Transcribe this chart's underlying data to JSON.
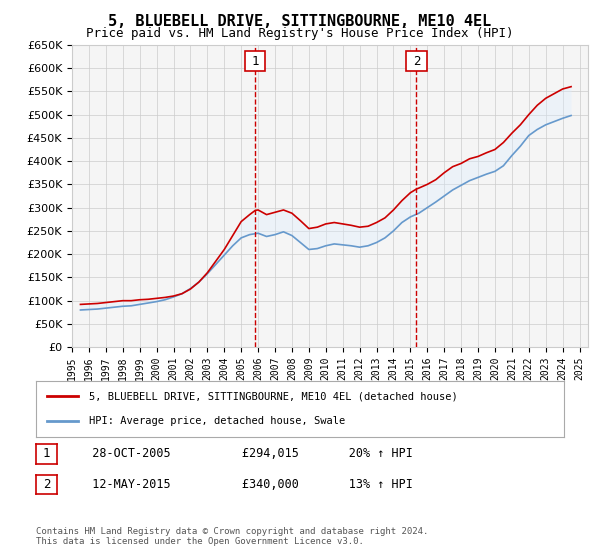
{
  "title": "5, BLUEBELL DRIVE, SITTINGBOURNE, ME10 4EL",
  "subtitle": "Price paid vs. HM Land Registry's House Price Index (HPI)",
  "ylabel_ticks": [
    "£0",
    "£50K",
    "£100K",
    "£150K",
    "£200K",
    "£250K",
    "£300K",
    "£350K",
    "£400K",
    "£450K",
    "£500K",
    "£550K",
    "£600K",
    "£650K"
  ],
  "ylim": [
    0,
    650000
  ],
  "ytick_values": [
    0,
    50000,
    100000,
    150000,
    200000,
    250000,
    300000,
    350000,
    400000,
    450000,
    500000,
    550000,
    600000,
    650000
  ],
  "red_line_color": "#cc0000",
  "blue_line_color": "#6699cc",
  "fill_color": "#ddeeff",
  "vline_color": "#cc0000",
  "vline_x1": 2005.83,
  "vline_x2": 2015.36,
  "marker1_label": "1",
  "marker2_label": "2",
  "transaction1": {
    "date": "28-OCT-2005",
    "price": 294015,
    "pct": "20%",
    "dir": "↑",
    "ref": "HPI"
  },
  "transaction2": {
    "date": "12-MAY-2015",
    "price": 340000,
    "pct": "13%",
    "dir": "↑",
    "ref": "HPI"
  },
  "legend_line1": "5, BLUEBELL DRIVE, SITTINGBOURNE, ME10 4EL (detached house)",
  "legend_line2": "HPI: Average price, detached house, Swale",
  "footnote": "Contains HM Land Registry data © Crown copyright and database right 2024.\nThis data is licensed under the Open Government Licence v3.0.",
  "background_color": "#ffffff",
  "plot_bg_color": "#f5f5f5",
  "red_data": {
    "years": [
      1995.5,
      1996.0,
      1996.5,
      1997.0,
      1997.5,
      1998.0,
      1998.5,
      1999.0,
      1999.5,
      2000.0,
      2000.5,
      2001.0,
      2001.5,
      2002.0,
      2002.5,
      2003.0,
      2003.5,
      2004.0,
      2004.5,
      2005.0,
      2005.5,
      2005.83,
      2006.0,
      2006.5,
      2007.0,
      2007.5,
      2008.0,
      2008.5,
      2009.0,
      2009.5,
      2010.0,
      2010.5,
      2011.0,
      2011.5,
      2012.0,
      2012.5,
      2013.0,
      2013.5,
      2014.0,
      2014.5,
      2015.0,
      2015.36,
      2015.5,
      2016.0,
      2016.5,
      2017.0,
      2017.5,
      2018.0,
      2018.5,
      2019.0,
      2019.5,
      2020.0,
      2020.5,
      2021.0,
      2021.5,
      2022.0,
      2022.5,
      2023.0,
      2023.5,
      2024.0,
      2024.5
    ],
    "values": [
      92000,
      93000,
      94000,
      96000,
      98000,
      100000,
      100000,
      102000,
      103000,
      105000,
      107000,
      110000,
      115000,
      125000,
      140000,
      160000,
      185000,
      210000,
      240000,
      270000,
      285000,
      294015,
      295000,
      285000,
      290000,
      295000,
      288000,
      272000,
      255000,
      258000,
      265000,
      268000,
      265000,
      262000,
      258000,
      260000,
      268000,
      278000,
      295000,
      315000,
      332000,
      340000,
      342000,
      350000,
      360000,
      375000,
      388000,
      395000,
      405000,
      410000,
      418000,
      425000,
      440000,
      460000,
      478000,
      500000,
      520000,
      535000,
      545000,
      555000,
      560000
    ]
  },
  "blue_data": {
    "years": [
      1995.5,
      1996.0,
      1996.5,
      1997.0,
      1997.5,
      1998.0,
      1998.5,
      1999.0,
      1999.5,
      2000.0,
      2000.5,
      2001.0,
      2001.5,
      2002.0,
      2002.5,
      2003.0,
      2003.5,
      2004.0,
      2004.5,
      2005.0,
      2005.5,
      2006.0,
      2006.5,
      2007.0,
      2007.5,
      2008.0,
      2008.5,
      2009.0,
      2009.5,
      2010.0,
      2010.5,
      2011.0,
      2011.5,
      2012.0,
      2012.5,
      2013.0,
      2013.5,
      2014.0,
      2014.5,
      2015.0,
      2015.5,
      2016.0,
      2016.5,
      2017.0,
      2017.5,
      2018.0,
      2018.5,
      2019.0,
      2019.5,
      2020.0,
      2020.5,
      2021.0,
      2021.5,
      2022.0,
      2022.5,
      2023.0,
      2023.5,
      2024.0,
      2024.5
    ],
    "values": [
      80000,
      81000,
      82000,
      84000,
      86000,
      88000,
      89000,
      92000,
      95000,
      98000,
      102000,
      108000,
      115000,
      126000,
      140000,
      158000,
      178000,
      198000,
      218000,
      235000,
      242000,
      245000,
      238000,
      242000,
      248000,
      240000,
      225000,
      210000,
      212000,
      218000,
      222000,
      220000,
      218000,
      215000,
      218000,
      225000,
      235000,
      250000,
      268000,
      280000,
      288000,
      300000,
      312000,
      325000,
      338000,
      348000,
      358000,
      365000,
      372000,
      378000,
      390000,
      412000,
      432000,
      455000,
      468000,
      478000,
      485000,
      492000,
      498000
    ]
  }
}
